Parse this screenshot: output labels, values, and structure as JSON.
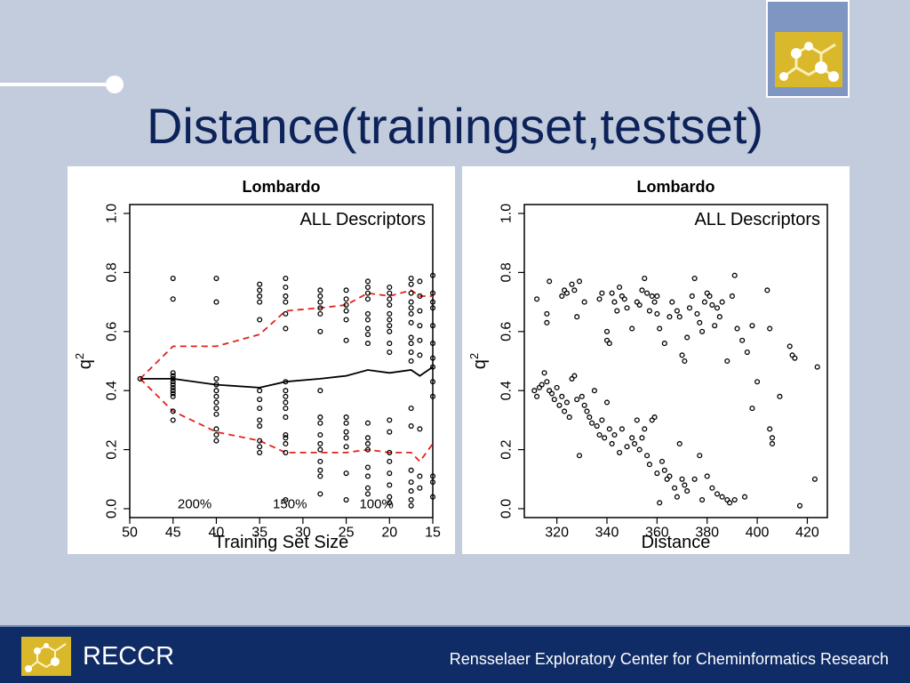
{
  "slide": {
    "title": "Distance(trainingset,testset)"
  },
  "footer": {
    "brand": "RECCR",
    "full_name": "Rensselaer Exploratory Center for Cheminformatics Research"
  },
  "colors": {
    "background": "#c3ccdc",
    "title": "#0c2258",
    "footer": "#0f2c66",
    "logo_gold": "#d9b82b",
    "band_red": "#e2231a"
  },
  "chart_data": [
    {
      "type": "scatter",
      "title": "Lombardo",
      "annotation": "ALL Descriptors",
      "xlabel": "Training Set Size",
      "ylabel": "q",
      "ylabel_superscript": "2",
      "xlim": [
        50,
        15
      ],
      "ylim": [
        0,
        1
      ],
      "x_ticks": [
        50,
        45,
        40,
        35,
        30,
        25,
        20,
        15
      ],
      "y_ticks": [
        "0.0",
        "0.2",
        "0.4",
        "0.6",
        "0.8",
        "1.0"
      ],
      "pct_labels": [
        {
          "x": 42.5,
          "y": 0.015,
          "text": "200%"
        },
        {
          "x": 31.5,
          "y": 0.015,
          "text": "150%"
        },
        {
          "x": 21.5,
          "y": 0.015,
          "text": "100%"
        }
      ],
      "points": [
        {
          "x": 48.8,
          "y": [
            0.44
          ]
        },
        {
          "x": 45,
          "y": [
            0.78,
            0.71,
            0.46,
            0.45,
            0.44,
            0.43,
            0.42,
            0.41,
            0.4,
            0.39,
            0.38,
            0.33,
            0.3
          ]
        },
        {
          "x": 40,
          "y": [
            0.78,
            0.7,
            0.44,
            0.42,
            0.4,
            0.38,
            0.36,
            0.34,
            0.32,
            0.27,
            0.25,
            0.23
          ]
        },
        {
          "x": 35,
          "y": [
            0.76,
            0.74,
            0.72,
            0.7,
            0.64,
            0.4,
            0.37,
            0.34,
            0.3,
            0.28,
            0.23,
            0.21,
            0.19
          ]
        },
        {
          "x": 32,
          "y": [
            0.78,
            0.75,
            0.72,
            0.7,
            0.66,
            0.61,
            0.43,
            0.4,
            0.38,
            0.36,
            0.34,
            0.31,
            0.25,
            0.24,
            0.22,
            0.19,
            0.03
          ]
        },
        {
          "x": 28,
          "y": [
            0.74,
            0.72,
            0.7,
            0.68,
            0.66,
            0.6,
            0.4,
            0.31,
            0.29,
            0.25,
            0.22,
            0.2,
            0.16,
            0.13,
            0.11,
            0.05
          ]
        },
        {
          "x": 25,
          "y": [
            0.74,
            0.71,
            0.69,
            0.67,
            0.64,
            0.57,
            0.31,
            0.29,
            0.26,
            0.24,
            0.21,
            0.12,
            0.03
          ]
        },
        {
          "x": 22.5,
          "y": [
            0.77,
            0.75,
            0.73,
            0.71,
            0.66,
            0.64,
            0.61,
            0.59,
            0.56,
            0.29,
            0.24,
            0.22,
            0.2,
            0.14,
            0.11,
            0.07,
            0.05
          ]
        },
        {
          "x": 20,
          "y": [
            0.75,
            0.73,
            0.71,
            0.69,
            0.66,
            0.64,
            0.62,
            0.6,
            0.56,
            0.53,
            0.3,
            0.26,
            0.19,
            0.16,
            0.12,
            0.08,
            0.04,
            0.02
          ]
        },
        {
          "x": 17.5,
          "y": [
            0.78,
            0.76,
            0.73,
            0.7,
            0.68,
            0.66,
            0.63,
            0.58,
            0.56,
            0.53,
            0.5,
            0.34,
            0.28,
            0.13,
            0.09,
            0.06,
            0.03,
            0.01
          ]
        },
        {
          "x": 16.5,
          "y": [
            0.77,
            0.72,
            0.67,
            0.62,
            0.57,
            0.52,
            0.27,
            0.11,
            0.07
          ]
        },
        {
          "x": 15,
          "y": [
            0.79,
            0.73,
            0.7,
            0.68,
            0.62,
            0.56,
            0.51,
            0.48,
            0.43,
            0.38,
            0.11,
            0.09,
            0.04
          ]
        }
      ],
      "series": [
        {
          "name": "",
          "style": "solid",
          "color": "#000000",
          "values": [
            [
              48.8,
              0.44
            ],
            [
              45,
              0.44
            ],
            [
              40,
              0.42
            ],
            [
              35,
              0.41
            ],
            [
              32,
              0.43
            ],
            [
              28,
              0.44
            ],
            [
              25,
              0.45
            ],
            [
              22.5,
              0.47
            ],
            [
              20,
              0.46
            ],
            [
              17.5,
              0.47
            ],
            [
              16.5,
              0.45
            ],
            [
              15,
              0.48
            ]
          ]
        },
        {
          "name": "",
          "style": "dashed",
          "color": "#e2231a",
          "values": [
            [
              48.8,
              0.44
            ],
            [
              45,
              0.55
            ],
            [
              40,
              0.55
            ],
            [
              35,
              0.59
            ],
            [
              32,
              0.67
            ],
            [
              28,
              0.68
            ],
            [
              25,
              0.69
            ],
            [
              22.5,
              0.73
            ],
            [
              20,
              0.72
            ],
            [
              17.5,
              0.74
            ],
            [
              16.5,
              0.72
            ],
            [
              15,
              0.72
            ]
          ]
        },
        {
          "name": "",
          "style": "dashed",
          "color": "#e2231a",
          "values": [
            [
              48.8,
              0.44
            ],
            [
              45,
              0.33
            ],
            [
              40,
              0.26
            ],
            [
              35,
              0.23
            ],
            [
              32,
              0.19
            ],
            [
              28,
              0.19
            ],
            [
              25,
              0.19
            ],
            [
              22.5,
              0.2
            ],
            [
              20,
              0.19
            ],
            [
              17.5,
              0.19
            ],
            [
              16.5,
              0.16
            ],
            [
              15,
              0.22
            ]
          ]
        }
      ]
    },
    {
      "type": "scatter",
      "title": "Lombardo",
      "annotation": "ALL Descriptors",
      "xlabel": "Distance",
      "ylabel": "q",
      "ylabel_superscript": "2",
      "xlim": [
        307,
        428
      ],
      "ylim": [
        0,
        1
      ],
      "x_ticks": [
        320,
        340,
        360,
        380,
        400,
        420
      ],
      "y_ticks": [
        "0.0",
        "0.2",
        "0.4",
        "0.6",
        "0.8",
        "1.0"
      ],
      "points": [
        [
          312,
          0.71
        ],
        [
          317,
          0.77
        ],
        [
          316,
          0.66
        ],
        [
          316,
          0.63
        ],
        [
          322,
          0.72
        ],
        [
          323,
          0.74
        ],
        [
          324,
          0.73
        ],
        [
          326,
          0.76
        ],
        [
          327,
          0.74
        ],
        [
          329,
          0.77
        ],
        [
          328,
          0.65
        ],
        [
          331,
          0.7
        ],
        [
          337,
          0.71
        ],
        [
          338,
          0.73
        ],
        [
          340,
          0.6
        ],
        [
          340,
          0.57
        ],
        [
          341,
          0.56
        ],
        [
          342,
          0.73
        ],
        [
          343,
          0.7
        ],
        [
          344,
          0.67
        ],
        [
          345,
          0.75
        ],
        [
          346,
          0.72
        ],
        [
          347,
          0.71
        ],
        [
          348,
          0.68
        ],
        [
          350,
          0.61
        ],
        [
          352,
          0.7
        ],
        [
          353,
          0.69
        ],
        [
          354,
          0.74
        ],
        [
          355,
          0.78
        ],
        [
          356,
          0.73
        ],
        [
          357,
          0.67
        ],
        [
          358,
          0.72
        ],
        [
          359,
          0.7
        ],
        [
          360,
          0.66
        ],
        [
          360,
          0.72
        ],
        [
          361,
          0.61
        ],
        [
          363,
          0.56
        ],
        [
          365,
          0.65
        ],
        [
          366,
          0.7
        ],
        [
          368,
          0.67
        ],
        [
          369,
          0.65
        ],
        [
          370,
          0.52
        ],
        [
          371,
          0.5
        ],
        [
          372,
          0.58
        ],
        [
          373,
          0.68
        ],
        [
          374,
          0.72
        ],
        [
          375,
          0.78
        ],
        [
          376,
          0.66
        ],
        [
          377,
          0.63
        ],
        [
          378,
          0.6
        ],
        [
          379,
          0.7
        ],
        [
          380,
          0.73
        ],
        [
          381,
          0.72
        ],
        [
          382,
          0.69
        ],
        [
          383,
          0.62
        ],
        [
          384,
          0.68
        ],
        [
          385,
          0.65
        ],
        [
          386,
          0.7
        ],
        [
          388,
          0.5
        ],
        [
          390,
          0.72
        ],
        [
          391,
          0.79
        ],
        [
          392,
          0.61
        ],
        [
          394,
          0.57
        ],
        [
          396,
          0.53
        ],
        [
          398,
          0.62
        ],
        [
          404,
          0.74
        ],
        [
          405,
          0.61
        ],
        [
          413,
          0.55
        ],
        [
          414,
          0.52
        ],
        [
          415,
          0.51
        ],
        [
          424,
          0.48
        ],
        [
          311,
          0.4
        ],
        [
          312,
          0.38
        ],
        [
          313,
          0.41
        ],
        [
          314,
          0.42
        ],
        [
          315,
          0.46
        ],
        [
          316,
          0.43
        ],
        [
          317,
          0.4
        ],
        [
          318,
          0.39
        ],
        [
          319,
          0.37
        ],
        [
          320,
          0.41
        ],
        [
          321,
          0.35
        ],
        [
          322,
          0.38
        ],
        [
          323,
          0.33
        ],
        [
          324,
          0.36
        ],
        [
          325,
          0.31
        ],
        [
          326,
          0.44
        ],
        [
          327,
          0.45
        ],
        [
          328,
          0.37
        ],
        [
          329,
          0.18
        ],
        [
          330,
          0.38
        ],
        [
          331,
          0.35
        ],
        [
          332,
          0.33
        ],
        [
          333,
          0.31
        ],
        [
          334,
          0.29
        ],
        [
          335,
          0.4
        ],
        [
          336,
          0.28
        ],
        [
          337,
          0.25
        ],
        [
          338,
          0.3
        ],
        [
          339,
          0.24
        ],
        [
          340,
          0.36
        ],
        [
          341,
          0.27
        ],
        [
          342,
          0.22
        ],
        [
          343,
          0.25
        ],
        [
          345,
          0.19
        ],
        [
          346,
          0.27
        ],
        [
          348,
          0.21
        ],
        [
          350,
          0.24
        ],
        [
          351,
          0.22
        ],
        [
          352,
          0.3
        ],
        [
          353,
          0.2
        ],
        [
          354,
          0.24
        ],
        [
          355,
          0.27
        ],
        [
          356,
          0.18
        ],
        [
          357,
          0.15
        ],
        [
          358,
          0.3
        ],
        [
          359,
          0.31
        ],
        [
          360,
          0.12
        ],
        [
          361,
          0.02
        ],
        [
          362,
          0.16
        ],
        [
          363,
          0.13
        ],
        [
          364,
          0.1
        ],
        [
          365,
          0.11
        ],
        [
          367,
          0.07
        ],
        [
          368,
          0.04
        ],
        [
          369,
          0.22
        ],
        [
          370,
          0.1
        ],
        [
          371,
          0.08
        ],
        [
          372,
          0.06
        ],
        [
          375,
          0.1
        ],
        [
          377,
          0.18
        ],
        [
          378,
          0.03
        ],
        [
          380,
          0.11
        ],
        [
          382,
          0.07
        ],
        [
          384,
          0.05
        ],
        [
          386,
          0.04
        ],
        [
          388,
          0.03
        ],
        [
          389,
          0.02
        ],
        [
          391,
          0.03
        ],
        [
          395,
          0.04
        ],
        [
          398,
          0.34
        ],
        [
          400,
          0.43
        ],
        [
          405,
          0.27
        ],
        [
          406,
          0.22
        ],
        [
          406,
          0.24
        ],
        [
          409,
          0.38
        ],
        [
          417,
          0.01
        ],
        [
          423,
          0.1
        ]
      ]
    }
  ]
}
